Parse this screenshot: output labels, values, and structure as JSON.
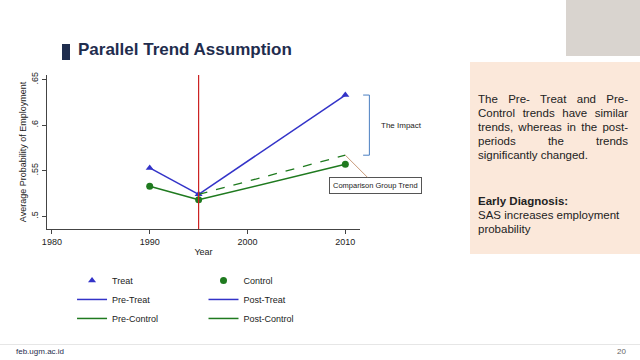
{
  "slide": {
    "title": "Parallel Trend Assumption",
    "text": "The Pre- Treat and Pre-Control trends have similar trends, whereas in the post-periods the trends significantly changed.",
    "note_title": "Early Diagnosis:",
    "note_text": "SAS increases employment probability",
    "page": "20",
    "footer": "feb.ugm.ac.id"
  },
  "chart_data": {
    "type": "line",
    "x_label": "Year",
    "y_label": "Average Probability of Employment",
    "xlim": [
      1979.5,
      2011.5
    ],
    "xticks": [
      1980,
      1990,
      2000,
      2010
    ],
    "ylim": [
      0.486,
      0.655
    ],
    "yticks": [
      {
        "value": 0.5,
        "label": ".5"
      },
      {
        "value": 0.55,
        "label": ".55"
      },
      {
        "value": 0.6,
        "label": ".6"
      },
      {
        "value": 0.65,
        "label": ".65"
      }
    ],
    "grid": false,
    "legend": "bottom",
    "event_year": 1995,
    "series": [
      {
        "name": "Treat",
        "type": "scatter",
        "marker": "triangle",
        "color": "#3333c8",
        "x": [
          1990,
          1995,
          2010
        ],
        "values": [
          0.553,
          0.524,
          0.633
        ]
      },
      {
        "name": "Control",
        "type": "scatter",
        "marker": "circle",
        "color": "#1f7a1f",
        "x": [
          1990,
          1995,
          2010
        ],
        "values": [
          0.533,
          0.518,
          0.557
        ]
      },
      {
        "name": "Pre-Treat",
        "type": "line",
        "line_style": "solid",
        "color": "#3333c8",
        "x": [
          1990,
          1995
        ],
        "values": [
          0.553,
          0.524
        ]
      },
      {
        "name": "Post-Treat",
        "type": "line",
        "line_style": "solid",
        "color": "#3333c8",
        "x": [
          1995,
          2010
        ],
        "values": [
          0.524,
          0.633
        ]
      },
      {
        "name": "Pre-Control",
        "type": "line",
        "line_style": "solid",
        "color": "#1f7a1f",
        "x": [
          1990,
          1995
        ],
        "values": [
          0.533,
          0.518
        ]
      },
      {
        "name": "Post-Control",
        "type": "line",
        "line_style": "solid",
        "color": "#1f7a1f",
        "x": [
          1995,
          2010
        ],
        "values": [
          0.518,
          0.557
        ]
      }
    ],
    "comparison": {
      "label": "Comparison Group Trend",
      "line_style": "dashed",
      "color": "#1f7a1f",
      "x": [
        1995,
        2010
      ],
      "values": [
        0.524,
        0.567
      ]
    },
    "impact": {
      "label": "The Impact",
      "from": 0.567,
      "to": 0.633
    }
  }
}
